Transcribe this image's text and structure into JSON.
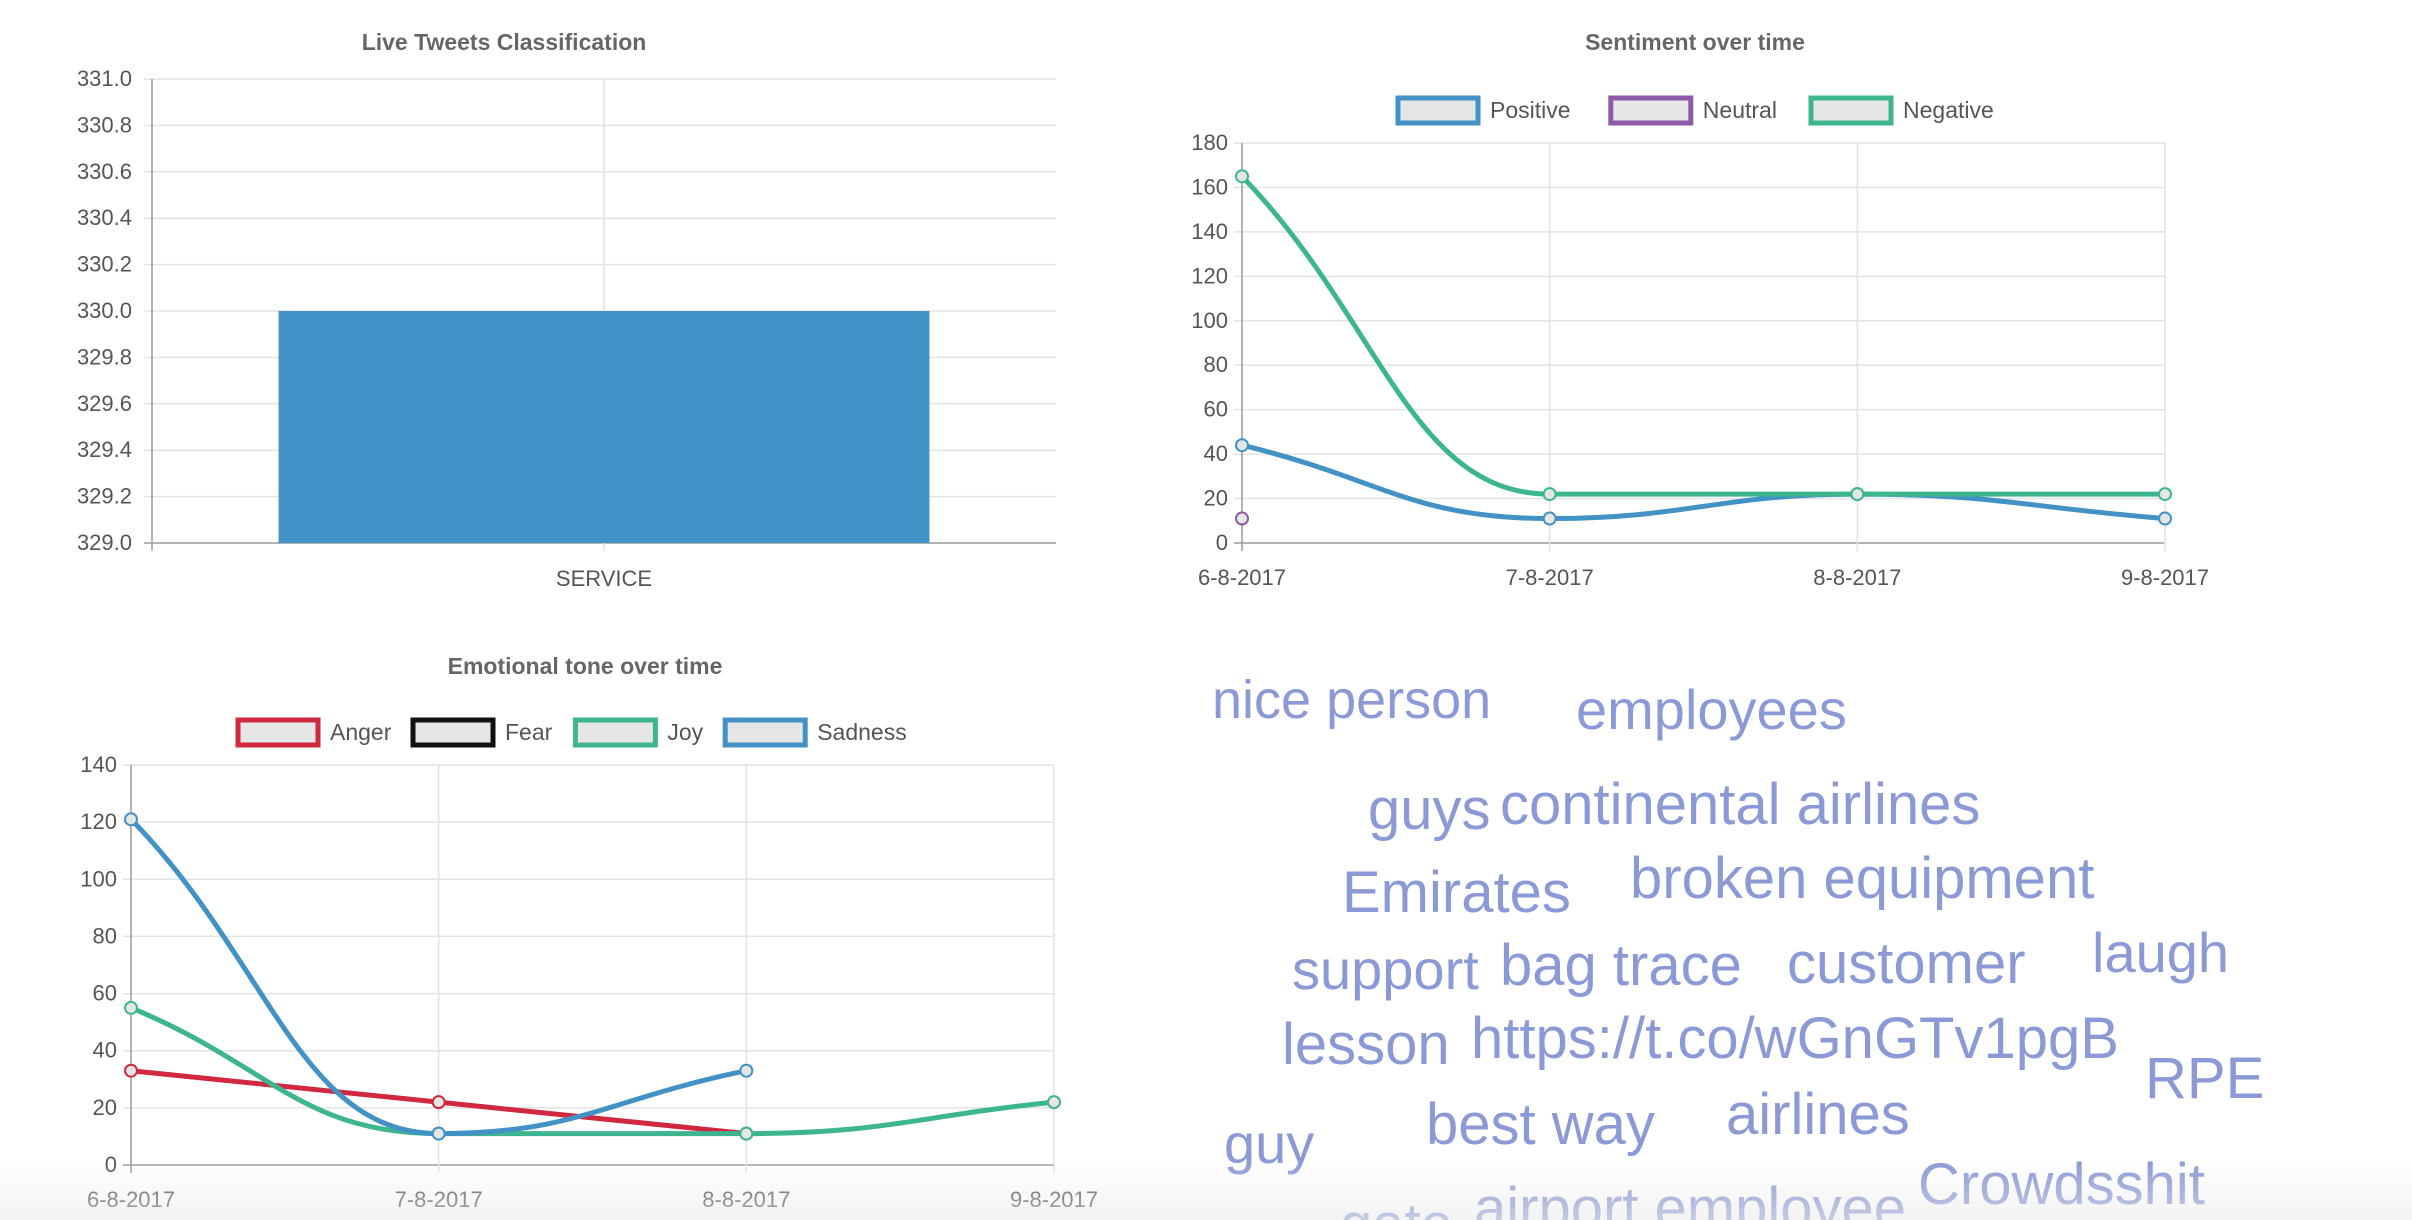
{
  "colors": {
    "blue": "#4292c6",
    "green": "#3db690",
    "purple": "#8e5aa8",
    "red": "#d0283e",
    "black": "#111111",
    "grid": "#e3e3e3",
    "axis": "#9a9a9a",
    "word": "#8b9ad6"
  },
  "chart_data": [
    {
      "type": "bar",
      "title": "Live Tweets Classification",
      "categories": [
        "SERVICE"
      ],
      "values": [
        330.0
      ],
      "ylim": [
        329.0,
        331.0
      ],
      "yticks": [
        "331.0",
        "330.8",
        "330.6",
        "330.4",
        "330.2",
        "330.0",
        "329.8",
        "329.6",
        "329.4",
        "329.2",
        "329.0"
      ],
      "grid": true,
      "legend": "none"
    },
    {
      "type": "line",
      "title": "Sentiment over time",
      "categories": [
        "6-8-2017",
        "7-8-2017",
        "8-8-2017",
        "9-8-2017"
      ],
      "ylim": [
        0,
        180
      ],
      "yticks": [
        "180",
        "160",
        "140",
        "120",
        "100",
        "80",
        "60",
        "40",
        "20",
        "0"
      ],
      "legend": "top",
      "series": [
        {
          "name": "Positive",
          "color": "#4292c6",
          "values": [
            44,
            11,
            22,
            11
          ]
        },
        {
          "name": "Neutral",
          "color": "#8e5aa8",
          "values": [
            11,
            null,
            null,
            null
          ]
        },
        {
          "name": "Negative",
          "color": "#3db690",
          "values": [
            165,
            22,
            22,
            22
          ]
        }
      ]
    },
    {
      "type": "line",
      "title": "Emotional tone over time",
      "categories": [
        "6-8-2017",
        "7-8-2017",
        "8-8-2017",
        "9-8-2017"
      ],
      "ylim": [
        0,
        140
      ],
      "yticks": [
        "140",
        "120",
        "100",
        "80",
        "60",
        "40",
        "20",
        "0"
      ],
      "legend": "top",
      "series": [
        {
          "name": "Anger",
          "color": "#d0283e",
          "values": [
            33,
            22,
            11,
            null
          ]
        },
        {
          "name": "Fear",
          "color": "#111111",
          "values": [
            null,
            null,
            null,
            null
          ]
        },
        {
          "name": "Joy",
          "color": "#3db690",
          "values": [
            55,
            11,
            11,
            22
          ]
        },
        {
          "name": "Sadness",
          "color": "#4292c6",
          "values": [
            121,
            11,
            33,
            null
          ]
        }
      ]
    }
  ],
  "wordcloud": {
    "words": [
      {
        "text": "nice person",
        "size": 54
      },
      {
        "text": "employees",
        "size": 56
      },
      {
        "text": "guys",
        "size": 58
      },
      {
        "text": "continental airlines",
        "size": 58
      },
      {
        "text": "Emirates",
        "size": 58
      },
      {
        "text": "broken equipment",
        "size": 58
      },
      {
        "text": "support",
        "size": 56
      },
      {
        "text": "bag trace",
        "size": 58
      },
      {
        "text": "customer",
        "size": 58
      },
      {
        "text": "laugh",
        "size": 56
      },
      {
        "text": "lesson",
        "size": 58
      },
      {
        "text": "https://t.co/wGnGTv1pgB",
        "size": 58
      },
      {
        "text": "RPE",
        "size": 58
      },
      {
        "text": "guy",
        "size": 56
      },
      {
        "text": "best way",
        "size": 58
      },
      {
        "text": "airlines",
        "size": 58
      },
      {
        "text": "Crowdsshit",
        "size": 58
      },
      {
        "text": "gate",
        "size": 58
      },
      {
        "text": "airport employee",
        "size": 58
      }
    ]
  }
}
